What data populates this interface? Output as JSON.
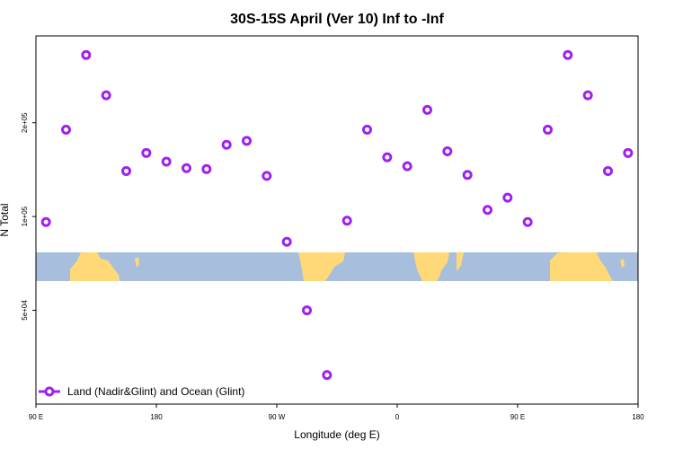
{
  "chart_data": {
    "type": "scatter",
    "title": "30S-15S April (Ver 10)   Inf to -Inf",
    "xlabel": "Longitude (deg E)",
    "ylabel": "N Total",
    "x_ticks": [
      {
        "value": 90,
        "label": "90 E"
      },
      {
        "value": 180,
        "label": "180"
      },
      {
        "value": 270,
        "label": "90 W"
      },
      {
        "value": 360,
        "label": "0"
      },
      {
        "value": 450,
        "label": "90 E"
      },
      {
        "value": 540,
        "label": "180"
      }
    ],
    "y_ticks": [
      {
        "value": 50000,
        "label": "5e+04"
      },
      {
        "value": 100000,
        "label": "1e+05"
      },
      {
        "value": 200000,
        "label": "2e+05"
      }
    ],
    "xlim": [
      90,
      540
    ],
    "ylim": [
      25000,
      380000
    ],
    "y_scale": "log",
    "legend": {
      "position": "bottom-left",
      "entries": [
        {
          "label": "Land (Nadir&Glint) and Ocean (Glint)",
          "color": "#a020f0"
        }
      ]
    },
    "series": [
      {
        "color": "#a020f0",
        "x": [
          97.5,
          112.5,
          127.5,
          142.5,
          157.5,
          172.5,
          187.5,
          202.5,
          217.5,
          232.5,
          247.5,
          262.5,
          277.5,
          292.5,
          307.5,
          322.5,
          337.5,
          352.5,
          367.5,
          382.5,
          397.5,
          412.5,
          427.5,
          442.5,
          457.5,
          472.5,
          487.5,
          502.5,
          517.5,
          532.5
        ],
        "y": [
          96000,
          190000,
          330000,
          245000,
          140000,
          160000,
          150000,
          143000,
          142000,
          170000,
          175000,
          135000,
          83000,
          50000,
          31000,
          97000,
          190000,
          155000,
          145000,
          220000,
          162000,
          136000,
          105000,
          115000,
          96000,
          190000,
          330000,
          245000,
          140000,
          160000
        ]
      }
    ]
  }
}
